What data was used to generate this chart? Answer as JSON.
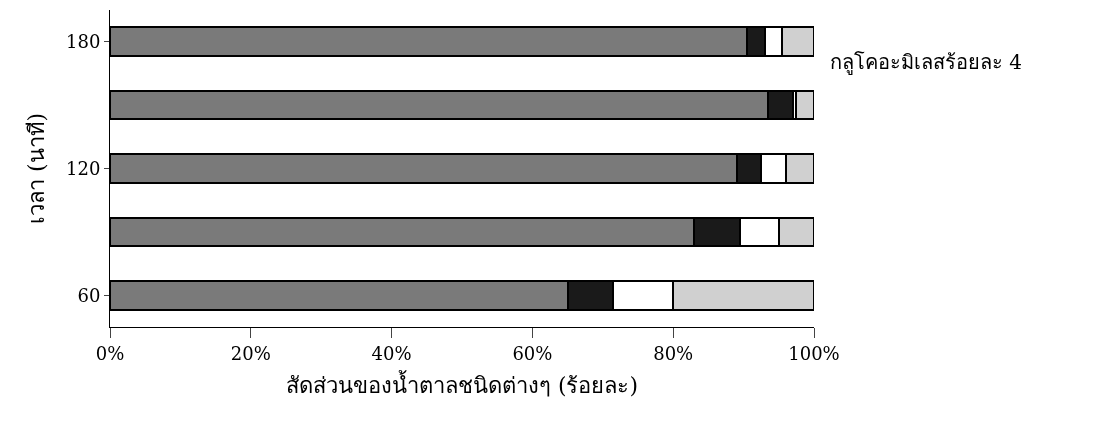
{
  "chart_data": {
    "type": "bar",
    "orientation": "horizontal",
    "stacked": true,
    "categories": [
      "180",
      null,
      "120",
      null,
      "60"
    ],
    "series": [
      {
        "color": "#7a7a7a",
        "values": [
          90.5,
          93.5,
          89,
          83,
          65
        ]
      },
      {
        "color": "#1a1a1a",
        "values": [
          2.5,
          3.5,
          3.5,
          6.5,
          6.5
        ]
      },
      {
        "color": "#ffffff",
        "values": [
          2.5,
          0.5,
          3.5,
          5.5,
          8.5
        ]
      },
      {
        "color": "#d0d0d0",
        "values": [
          4.5,
          2.5,
          4,
          5,
          20
        ]
      }
    ],
    "xlim": [
      0,
      100
    ],
    "xticks": [
      {
        "value": 0,
        "label": "0%"
      },
      {
        "value": 20,
        "label": "20%"
      },
      {
        "value": 40,
        "label": "40%"
      },
      {
        "value": 60,
        "label": "60%"
      },
      {
        "value": 80,
        "label": "80%"
      },
      {
        "value": 100,
        "label": "100%"
      }
    ],
    "xlabel": "สัดส่วนของน้ำตาลชนิดต่างๆ (ร้อยละ)",
    "ylabel": "เวลา (นาที)",
    "annotations": [
      "กลูโคอะมิเลสร้อยละ 4"
    ]
  }
}
